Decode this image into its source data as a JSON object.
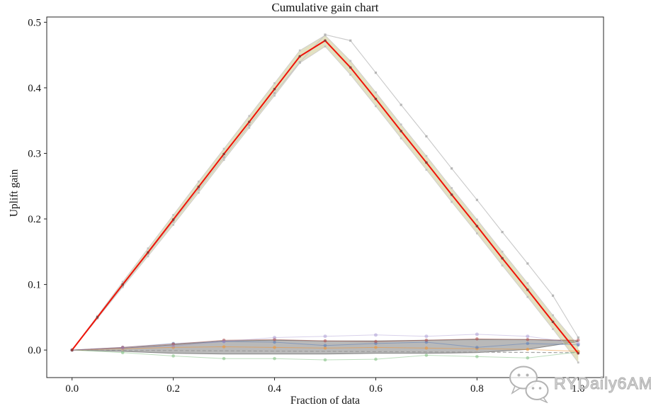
{
  "title": "Cumulative gain chart",
  "watermark": {
    "text": "RYDaily6AM",
    "icon": "wechat-icon"
  },
  "colors": {
    "main_line": "#ef1309",
    "main_marker": "#8c3a35",
    "confidence_band_fill": "#bdb76b",
    "confidence_band_edge": "#cccccc",
    "comparison_line": "#c6c6c6",
    "comparison_marker": "#b3b3b3",
    "noise_band_fill": "#808080",
    "noise_band_edge": "#6f6f6f",
    "baseline_dashed": "#9a9a9a",
    "axis": "#262626",
    "watermark_gray": "#b3b3b3"
  },
  "chart_data": {
    "type": "line",
    "title": "Cumulative gain chart",
    "xlabel": "Fraction of data",
    "ylabel": "Uplift gain",
    "xlim": [
      -0.05,
      1.05
    ],
    "ylim": [
      -0.042,
      0.508
    ],
    "xticks": [
      0.0,
      0.2,
      0.4,
      0.6,
      0.8,
      1.0
    ],
    "yticks": [
      0.0,
      0.1,
      0.2,
      0.3,
      0.4,
      0.5
    ],
    "grid": false,
    "legend": "none",
    "bands": [
      {
        "name": "noise-models-spread",
        "x": [
          0,
          0.1,
          0.2,
          0.3,
          0.4,
          0.5,
          0.6,
          0.7,
          0.8,
          0.9,
          1.0
        ],
        "upper": [
          0,
          0.003,
          0.008,
          0.014,
          0.015,
          0.014,
          0.014,
          0.015,
          0.016,
          0.016,
          0.014
        ],
        "lower": [
          0,
          -0.002,
          -0.005,
          -0.006,
          -0.006,
          -0.006,
          -0.005,
          -0.005,
          -0.004,
          0.001,
          0.013
        ],
        "fill": "#808080",
        "fill_opacity": 0.55,
        "edge": "#6f6f6f",
        "edge_opacity": 0.8,
        "edge_width": 1
      },
      {
        "name": "best-model-confidence",
        "x": [
          0,
          0.05,
          0.1,
          0.15,
          0.2,
          0.25,
          0.3,
          0.35,
          0.4,
          0.45,
          0.5,
          0.55,
          0.6,
          0.65,
          0.7,
          0.75,
          0.8,
          0.85,
          0.9,
          0.95,
          1.0
        ],
        "upper": [
          0,
          0.052,
          0.104,
          0.155,
          0.206,
          0.257,
          0.307,
          0.357,
          0.407,
          0.457,
          0.48,
          0.441,
          0.393,
          0.344,
          0.296,
          0.247,
          0.199,
          0.15,
          0.102,
          0.053,
          0.007
        ],
        "lower": [
          0,
          0.048,
          0.096,
          0.143,
          0.191,
          0.24,
          0.29,
          0.339,
          0.388,
          0.438,
          0.463,
          0.42,
          0.372,
          0.323,
          0.275,
          0.226,
          0.178,
          0.129,
          0.081,
          0.032,
          -0.019
        ],
        "fill": "#bdb76b",
        "fill_opacity": 0.42,
        "edge": "#cccccc",
        "edge_opacity": 0.9,
        "edge_width": 1,
        "edge_marker": "square",
        "edge_marker_color": "#bfbfbf",
        "edge_marker_size": 2.8
      }
    ],
    "baseline": {
      "name": "random-baseline",
      "x": [
        0,
        1.0
      ],
      "y": [
        0,
        -0.004
      ],
      "color": "#9a9a9a",
      "dash": "5 3",
      "width": 1.2,
      "opacity": 0.9
    },
    "series": [
      {
        "name": "model-green",
        "x": [
          0,
          0.1,
          0.2,
          0.3,
          0.4,
          0.5,
          0.6,
          0.7,
          0.8,
          0.9,
          1.0
        ],
        "y": [
          0,
          -0.004,
          -0.009,
          -0.013,
          -0.013,
          -0.015,
          -0.014,
          -0.008,
          -0.01,
          -0.012,
          -0.003
        ],
        "color": "#7dbe7d",
        "width": 1,
        "opacity": 0.5,
        "marker": "circle",
        "marker_color": "#7dbe7d",
        "marker_opacity": 0.55,
        "marker_size": 2.3
      },
      {
        "name": "model-orange",
        "x": [
          0,
          0.1,
          0.2,
          0.3,
          0.4,
          0.5,
          0.6,
          0.7,
          0.8,
          0.9,
          1.0
        ],
        "y": [
          0,
          0.002,
          0.004,
          0.005,
          0.004,
          0.003,
          0.004,
          0.003,
          0.002,
          0.001,
          -0.002
        ],
        "color": "#eb963c",
        "width": 1,
        "opacity": 0.6,
        "marker": "circle",
        "marker_color": "#eb963c",
        "marker_opacity": 0.6,
        "marker_size": 2.3
      },
      {
        "name": "model-blue",
        "x": [
          0,
          0.1,
          0.2,
          0.3,
          0.4,
          0.5,
          0.6,
          0.7,
          0.8,
          0.9,
          1.0
        ],
        "y": [
          0,
          0.004,
          0.01,
          0.013,
          0.012,
          0.007,
          0.01,
          0.012,
          0.004,
          0.01,
          0.008
        ],
        "color": "#6082b9",
        "width": 1,
        "opacity": 0.55,
        "marker": "circle",
        "marker_color": "#6082b9",
        "marker_opacity": 0.6,
        "marker_size": 2.3
      },
      {
        "name": "model-brown",
        "x": [
          0,
          0.1,
          0.2,
          0.3,
          0.4,
          0.5,
          0.6,
          0.7,
          0.8,
          0.9,
          1.0
        ],
        "y": [
          0,
          0.004,
          0.009,
          0.015,
          0.016,
          0.014,
          0.013,
          0.015,
          0.017,
          0.016,
          0.015
        ],
        "color": "#a5584e",
        "width": 1,
        "opacity": 0.55,
        "marker": "circle",
        "marker_color": "#b05555",
        "marker_opacity": 0.6,
        "marker_size": 2.3
      },
      {
        "name": "model-purple",
        "x": [
          0,
          0.1,
          0.2,
          0.3,
          0.4,
          0.5,
          0.6,
          0.7,
          0.8,
          0.9,
          1.0
        ],
        "y": [
          0,
          0.003,
          0.006,
          0.013,
          0.019,
          0.021,
          0.023,
          0.021,
          0.024,
          0.021,
          0.01
        ],
        "color": "#9e8ccd",
        "width": 1,
        "opacity": 0.4,
        "marker": "circle",
        "marker_color": "#9e8ccd",
        "marker_opacity": 0.45,
        "marker_size": 2.5
      },
      {
        "name": "comparison-model-gray",
        "x": [
          0,
          0.05,
          0.1,
          0.15,
          0.2,
          0.25,
          0.3,
          0.35,
          0.4,
          0.45,
          0.5,
          0.55,
          0.6,
          0.65,
          0.7,
          0.75,
          0.8,
          0.85,
          0.9,
          0.95,
          1.0
        ],
        "y": [
          0,
          0.049,
          0.098,
          0.147,
          0.196,
          0.245,
          0.294,
          0.343,
          0.392,
          0.439,
          0.481,
          0.472,
          0.423,
          0.374,
          0.326,
          0.277,
          0.229,
          0.18,
          0.132,
          0.083,
          0.019
        ],
        "color": "#c6c6c6",
        "width": 1.1,
        "opacity": 0.95,
        "marker": "square",
        "marker_color": "#b3b3b3",
        "marker_opacity": 0.95,
        "marker_size": 3.2
      },
      {
        "name": "best-model-red",
        "x": [
          0,
          0.05,
          0.1,
          0.15,
          0.2,
          0.25,
          0.3,
          0.35,
          0.4,
          0.45,
          0.5,
          0.55,
          0.6,
          0.65,
          0.7,
          0.75,
          0.8,
          0.85,
          0.9,
          0.95,
          1.0
        ],
        "y": [
          0,
          0.05,
          0.1,
          0.149,
          0.199,
          0.249,
          0.299,
          0.348,
          0.398,
          0.448,
          0.472,
          0.431,
          0.383,
          0.334,
          0.286,
          0.237,
          0.189,
          0.14,
          0.092,
          0.043,
          -0.005
        ],
        "color": "#ef1309",
        "width": 2,
        "opacity": 1,
        "marker": "circle",
        "marker_color": "#8c3a35",
        "marker_opacity": 0.95,
        "marker_size": 1.8
      }
    ]
  }
}
